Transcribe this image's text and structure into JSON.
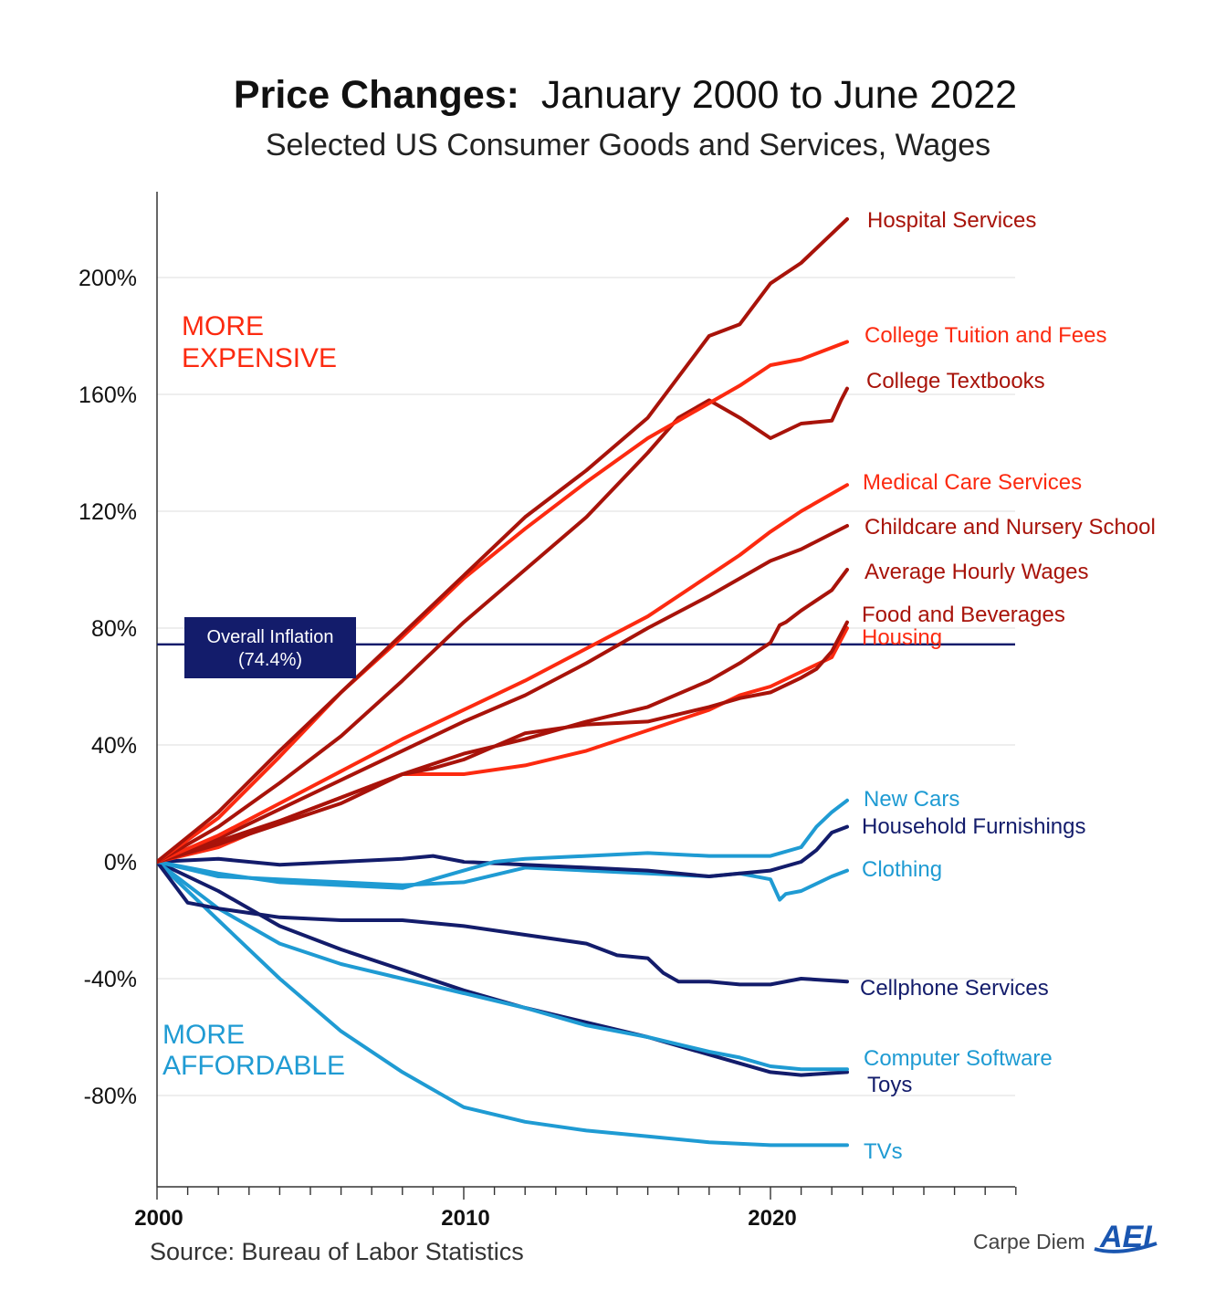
{
  "title": "Price Changes:",
  "title_rest": "January 2000 to June 2022",
  "subtitle": "Selected US Consumer Goods and Services, Wages",
  "source": "Source: Bureau of Labor Statistics",
  "brand": {
    "text": "Carpe Diem",
    "logo": "AEI"
  },
  "annotations": {
    "more_expensive": [
      "MORE",
      "EXPENSIVE"
    ],
    "more_affordable": [
      "MORE",
      "AFFORDABLE"
    ],
    "inflation_box": [
      "Overall Inflation",
      "(74.4%)"
    ]
  },
  "colors": {
    "red_dark": "#a8130a",
    "red_bright": "#fc2a10",
    "blue_light": "#1f9bd3",
    "navy": "#131c6b"
  },
  "chart_data": {
    "type": "line",
    "x_unit": "year",
    "xlim": [
      2000,
      2028
    ],
    "ylim": [
      -110,
      230
    ],
    "y_ticks": [
      -80,
      -40,
      0,
      40,
      80,
      120,
      160,
      200
    ],
    "y_tick_labels": [
      "-80%",
      "-40%",
      "0%",
      "40%",
      "80%",
      "120%",
      "160%",
      "200%"
    ],
    "x_tick_labels": [
      {
        "x": 2000,
        "label": "2000"
      },
      {
        "x": 2010,
        "label": "2010"
      },
      {
        "x": 2020,
        "label": "2020"
      }
    ],
    "grid": "horizontal",
    "reference_line": {
      "label": "Overall Inflation (74.4%)",
      "value": 74.4
    },
    "series": [
      {
        "name": "Hospital Services",
        "color": "#a8130a",
        "x": [
          2000,
          2002,
          2004,
          2006,
          2008,
          2010,
          2012,
          2014,
          2016,
          2018,
          2019,
          2020,
          2021,
          2022.5
        ],
        "y": [
          0,
          17,
          38,
          58,
          78,
          98,
          118,
          134,
          152,
          180,
          184,
          198,
          205,
          220
        ]
      },
      {
        "name": "College Tuition and Fees",
        "color": "#fc2a10",
        "x": [
          2000,
          2002,
          2004,
          2006,
          2008,
          2010,
          2012,
          2014,
          2016,
          2018,
          2019,
          2020,
          2021,
          2022.5
        ],
        "y": [
          0,
          15,
          36,
          58,
          77,
          97,
          114,
          130,
          145,
          157,
          163,
          170,
          172,
          178
        ]
      },
      {
        "name": "College Textbooks",
        "color": "#a8130a",
        "x": [
          2000,
          2002,
          2004,
          2006,
          2008,
          2010,
          2012,
          2014,
          2016,
          2017,
          2018,
          2019,
          2020,
          2021,
          2022,
          2022.3,
          2022.5
        ],
        "y": [
          0,
          12,
          27,
          43,
          62,
          82,
          100,
          118,
          140,
          152,
          158,
          152,
          145,
          150,
          151,
          158,
          162
        ]
      },
      {
        "name": "Medical Care Services",
        "color": "#fc2a10",
        "x": [
          2000,
          2002,
          2004,
          2006,
          2008,
          2010,
          2012,
          2014,
          2016,
          2018,
          2019,
          2020,
          2021,
          2022.5
        ],
        "y": [
          0,
          9,
          20,
          31,
          42,
          52,
          62,
          73,
          84,
          98,
          105,
          113,
          120,
          129
        ]
      },
      {
        "name": "Childcare and Nursery School",
        "color": "#a8130a",
        "x": [
          2000,
          2002,
          2004,
          2006,
          2008,
          2010,
          2012,
          2014,
          2016,
          2018,
          2019,
          2020,
          2021,
          2022.5
        ],
        "y": [
          0,
          8,
          18,
          28,
          38,
          48,
          57,
          68,
          80,
          91,
          97,
          103,
          107,
          115
        ]
      },
      {
        "name": "Average Hourly Wages",
        "color": "#a8130a",
        "x": [
          2000,
          2002,
          2004,
          2006,
          2008,
          2010,
          2012,
          2014,
          2016,
          2018,
          2019,
          2020,
          2020.3,
          2020.5,
          2021,
          2022,
          2022.5
        ],
        "y": [
          0,
          7,
          14,
          22,
          30,
          37,
          42,
          48,
          53,
          62,
          68,
          75,
          81,
          82,
          86,
          93,
          100
        ]
      },
      {
        "name": "Food and Beverages",
        "color": "#a8130a",
        "x": [
          2000,
          2002,
          2004,
          2006,
          2008,
          2009,
          2010,
          2012,
          2014,
          2016,
          2018,
          2019,
          2020,
          2021,
          2021.5,
          2022,
          2022.5
        ],
        "y": [
          0,
          6,
          13,
          20,
          30,
          32,
          35,
          44,
          47,
          48,
          53,
          56,
          58,
          63,
          66,
          72,
          82
        ]
      },
      {
        "name": "Housing",
        "color": "#fc2a10",
        "x": [
          2000,
          2002,
          2004,
          2006,
          2008,
          2009,
          2010,
          2012,
          2014,
          2016,
          2018,
          2019,
          2020,
          2021,
          2022,
          2022.5
        ],
        "y": [
          0,
          5,
          14,
          22,
          30,
          30,
          30,
          33,
          38,
          45,
          52,
          57,
          60,
          65,
          70,
          80
        ]
      },
      {
        "name": "New Cars",
        "color": "#1f9bd3",
        "x": [
          2000,
          2002,
          2004,
          2006,
          2008,
          2009,
          2010,
          2011,
          2012,
          2014,
          2016,
          2018,
          2020,
          2021,
          2021.5,
          2022,
          2022.5
        ],
        "y": [
          0,
          -4,
          -7,
          -8,
          -9,
          -6,
          -3,
          0,
          1,
          2,
          3,
          2,
          2,
          5,
          12,
          17,
          21
        ]
      },
      {
        "name": "Household Furnishings",
        "color": "#131c6b",
        "x": [
          2000,
          2002,
          2004,
          2006,
          2008,
          2009,
          2010,
          2012,
          2014,
          2016,
          2018,
          2019,
          2020,
          2021,
          2021.5,
          2022,
          2022.5
        ],
        "y": [
          0,
          1,
          -1,
          0,
          1,
          2,
          0,
          -1,
          -2,
          -3,
          -5,
          -4,
          -3,
          0,
          4,
          10,
          12
        ]
      },
      {
        "name": "Clothing",
        "color": "#1f9bd3",
        "x": [
          2000,
          2002,
          2004,
          2006,
          2008,
          2010,
          2012,
          2014,
          2016,
          2018,
          2019,
          2020,
          2020.3,
          2020.5,
          2021,
          2022,
          2022.5
        ],
        "y": [
          0,
          -5,
          -6,
          -7,
          -8,
          -7,
          -2,
          -3,
          -4,
          -5,
          -4,
          -6,
          -13,
          -11,
          -10,
          -5,
          -3
        ]
      },
      {
        "name": "Cellphone Services",
        "color": "#131c6b",
        "x": [
          2000,
          2001,
          2002,
          2004,
          2006,
          2008,
          2010,
          2012,
          2014,
          2015,
          2016,
          2016.5,
          2017,
          2018,
          2019,
          2020,
          2021,
          2022.5
        ],
        "y": [
          0,
          -14,
          -16,
          -19,
          -20,
          -20,
          -22,
          -25,
          -28,
          -32,
          -33,
          -38,
          -41,
          -41,
          -42,
          -42,
          -40,
          -41
        ]
      },
      {
        "name": "Computer Software",
        "color": "#1f9bd3",
        "x": [
          2000,
          2002,
          2004,
          2006,
          2008,
          2010,
          2012,
          2014,
          2016,
          2018,
          2019,
          2020,
          2021,
          2022.5
        ],
        "y": [
          0,
          -16,
          -28,
          -35,
          -40,
          -45,
          -50,
          -56,
          -60,
          -65,
          -67,
          -70,
          -71,
          -71
        ]
      },
      {
        "name": "Toys",
        "color": "#131c6b",
        "x": [
          2000,
          2002,
          2004,
          2006,
          2008,
          2010,
          2012,
          2014,
          2016,
          2018,
          2019,
          2020,
          2021,
          2022.5
        ],
        "y": [
          0,
          -10,
          -22,
          -30,
          -37,
          -44,
          -50,
          -55,
          -60,
          -66,
          -69,
          -72,
          -73,
          -72
        ]
      },
      {
        "name": "TVs",
        "color": "#1f9bd3",
        "x": [
          2000,
          2002,
          2004,
          2006,
          2008,
          2010,
          2012,
          2014,
          2016,
          2018,
          2020,
          2022.5
        ],
        "y": [
          0,
          -20,
          -40,
          -58,
          -72,
          -84,
          -89,
          -92,
          -94,
          -96,
          -97,
          -97
        ]
      }
    ]
  }
}
